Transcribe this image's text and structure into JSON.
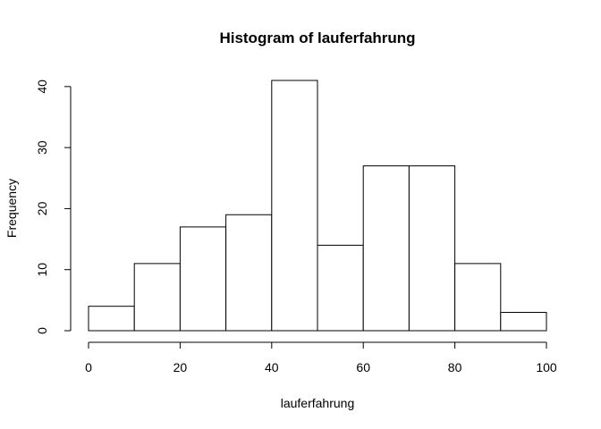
{
  "chart_data": {
    "type": "bar",
    "title": "Histogram of lauferfahrung",
    "xlabel": "lauferfahrung",
    "ylabel": "Frequency",
    "bins": [
      {
        "from": 0,
        "to": 10,
        "count": 4
      },
      {
        "from": 10,
        "to": 20,
        "count": 11
      },
      {
        "from": 20,
        "to": 30,
        "count": 17
      },
      {
        "from": 30,
        "to": 40,
        "count": 19
      },
      {
        "from": 40,
        "to": 50,
        "count": 41
      },
      {
        "from": 50,
        "to": 60,
        "count": 14
      },
      {
        "from": 60,
        "to": 70,
        "count": 27
      },
      {
        "from": 70,
        "to": 80,
        "count": 27
      },
      {
        "from": 80,
        "to": 90,
        "count": 11
      },
      {
        "from": 90,
        "to": 100,
        "count": 3
      }
    ],
    "xticks": [
      0,
      20,
      40,
      60,
      80,
      100
    ],
    "yticks": [
      0,
      10,
      20,
      30,
      40
    ],
    "xlim": [
      0,
      100
    ],
    "ylim": [
      0,
      41
    ],
    "grid": false,
    "bar_fill": "#ffffff",
    "bar_stroke": "#000000"
  }
}
